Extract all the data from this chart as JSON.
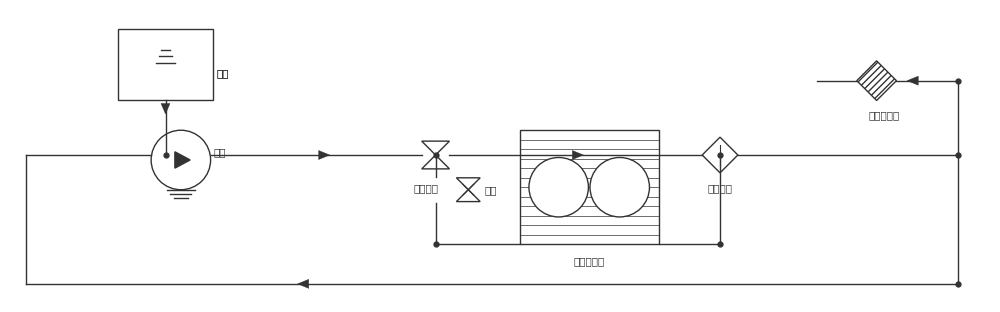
{
  "bg_color": "#ffffff",
  "line_color": "#333333",
  "line_width": 1.0,
  "labels": {
    "water_tank": "水箔",
    "water_pump": "水泵",
    "temp_control": "调温装置",
    "valve": "阀件",
    "heater": "氯热器组件",
    "water_filter": "水器组件",
    "deionizer": "去离子组件"
  },
  "figsize": [
    10.0,
    3.12
  ],
  "dpi": 100
}
